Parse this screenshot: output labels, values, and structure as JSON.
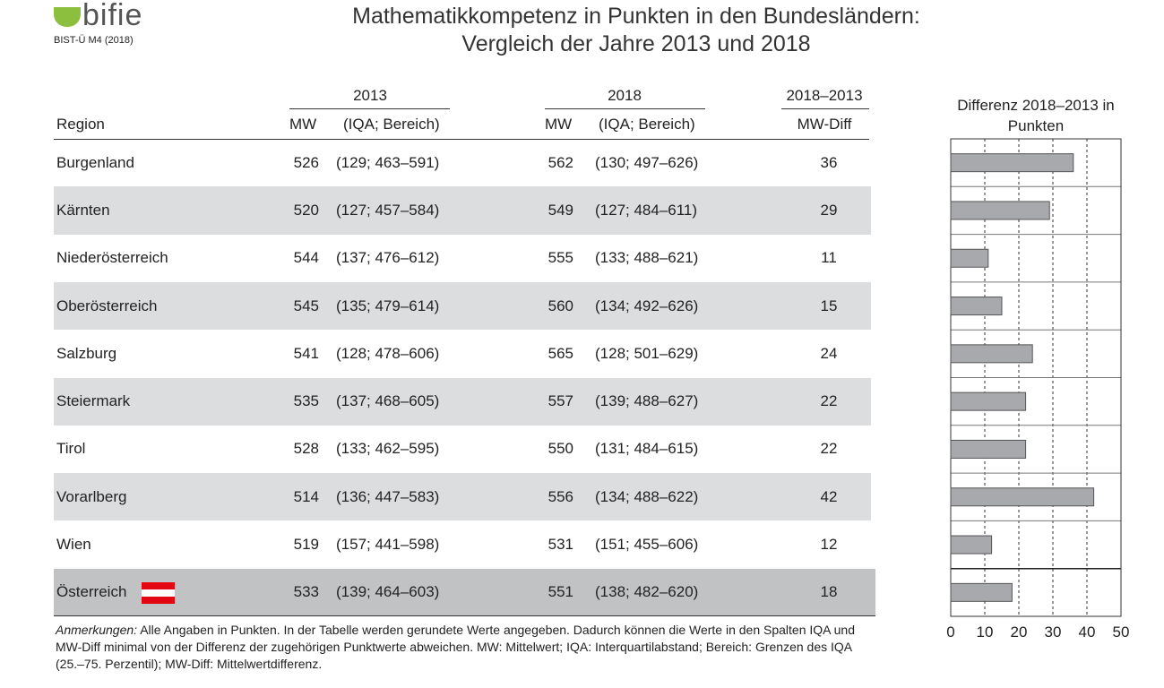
{
  "logo": {
    "name": "bifie",
    "sub": "BIST-Ü M4 (2018)"
  },
  "title": [
    "Mathematikkompetenz in Punkten in den Bundesländern:",
    "Vergleich der Jahre 2013 und 2018"
  ],
  "table": {
    "group_headers": [
      "2013",
      "2018",
      "2018–2013"
    ],
    "headers": [
      "Region",
      "MW",
      "(IQA; Bereich)",
      "MW",
      "(IQA; Bereich)",
      "MW-Diff"
    ],
    "rows": [
      [
        "Burgenland",
        "526",
        "(129; 463–591)",
        "562",
        "(130; 497–626)"
      ],
      [
        "Kärnten",
        "520",
        "(127; 457–584)",
        "549",
        "(127; 484–611)"
      ],
      [
        "Niederösterreich",
        "544",
        "(137; 476–612)",
        "555",
        "(133; 488–621)"
      ],
      [
        "Oberösterreich",
        "545",
        "(135; 479–614)",
        "560",
        "(134; 492–626)"
      ],
      [
        "Salzburg",
        "541",
        "(128; 478–606)",
        "565",
        "(128; 501–629)"
      ],
      [
        "Steiermark",
        "535",
        "(137; 468–605)",
        "557",
        "(139; 488–627)"
      ],
      [
        "Tirol",
        "528",
        "(133; 462–595)",
        "550",
        "(131; 484–615)"
      ],
      [
        "Vorarlberg",
        "514",
        "(136; 447–583)",
        "556",
        "(134; 488–622)"
      ],
      [
        "Wien",
        "519",
        "(157; 441–598)",
        "531",
        "(151; 455–606)"
      ],
      [
        "Österreich",
        "533",
        "(139; 464–603)",
        "551",
        "(138; 482–620)"
      ]
    ]
  },
  "chart_data": {
    "type": "bar",
    "title": "Differenz 2018–2013 in Punkten",
    "values": [
      36,
      29,
      11,
      15,
      24,
      22,
      22,
      42,
      12,
      18
    ],
    "color": "#a7a9ac",
    "xlim": [
      0,
      50
    ],
    "xticks": [
      0,
      10,
      20,
      30,
      40,
      50
    ],
    "grid": true
  },
  "notes": {
    "label": "Anmerkungen:",
    "text": "Alle Angaben in Punkten. In der Tabelle werden gerundete Werte angegeben. Dadurch können die Werte in den Spalten IQA und MW-Diff minimal von der Differenz der zugehörigen Punktwerte abweichen. MW: Mittelwert; IQA: Interquartilabstand; Bereich: Grenzen des IQA (25.–75. Perzentil); MW-Diff: Mittelwertdifferenz."
  }
}
